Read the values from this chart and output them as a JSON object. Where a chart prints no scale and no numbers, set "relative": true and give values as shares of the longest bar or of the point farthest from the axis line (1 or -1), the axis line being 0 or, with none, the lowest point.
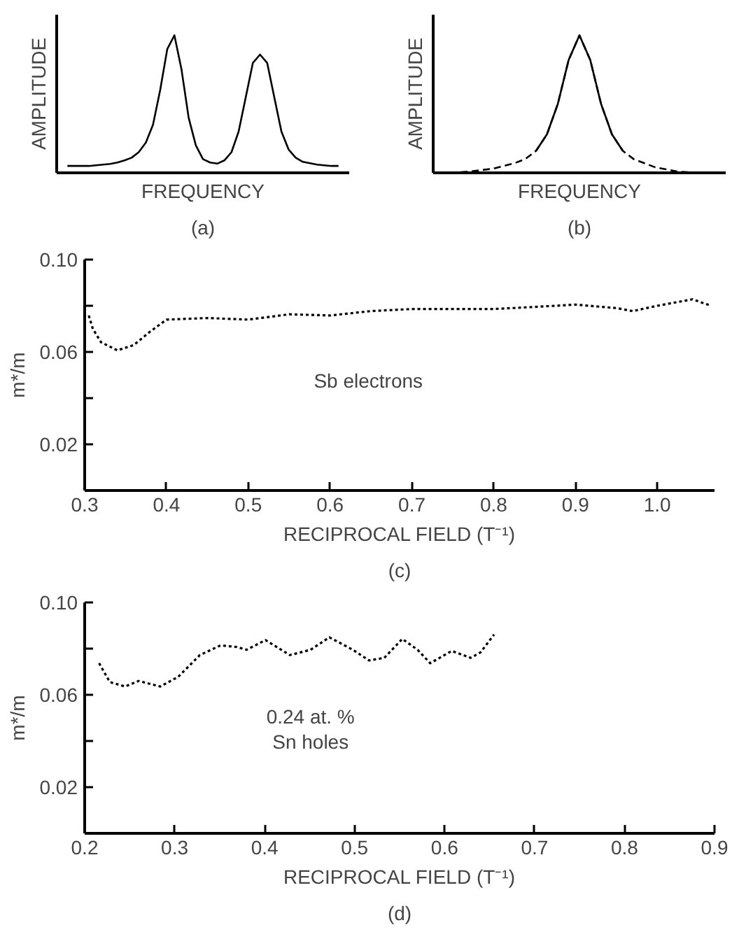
{
  "chart_data": [
    {
      "type": "line",
      "relative": true,
      "xlabel": "FREQUENCY",
      "ylabel": "AMPLITUDE",
      "annotations": [
        "(a)"
      ],
      "line_style": "solid",
      "categories": [
        null,
        null,
        null,
        null,
        null,
        null,
        null,
        null,
        null,
        null,
        null,
        null,
        null,
        null,
        null,
        null,
        null,
        null,
        null,
        null,
        null,
        null,
        null,
        null,
        null,
        null,
        null,
        null,
        null,
        null,
        null,
        null,
        null,
        null,
        null,
        null,
        null,
        null,
        null
      ],
      "series": [
        {
          "color": "#000000",
          "values": [
            0.05,
            0.05,
            0.05,
            0.05,
            0.055,
            0.06,
            0.065,
            0.075,
            0.09,
            0.11,
            0.15,
            0.22,
            0.35,
            0.6,
            0.9,
            1.0,
            0.75,
            0.4,
            0.2,
            0.1,
            0.075,
            0.067,
            0.09,
            0.15,
            0.3,
            0.55,
            0.8,
            0.86,
            0.8,
            0.55,
            0.3,
            0.17,
            0.11,
            0.08,
            0.07,
            0.06,
            0.055,
            0.05,
            0.05
          ]
        }
      ]
    },
    {
      "type": "line",
      "relative": true,
      "xlabel": "FREQUENCY",
      "ylabel": "AMPLITUDE",
      "annotations": [
        "(b)"
      ],
      "categories": [
        null,
        null,
        null,
        null,
        null,
        null,
        null,
        null,
        null,
        null,
        null,
        null,
        null,
        null,
        null,
        null,
        null,
        null,
        null,
        null,
        null,
        null,
        null,
        null,
        null
      ],
      "series": [
        {
          "color": "#000000",
          "line_style": "dashed",
          "values": [
            0.0,
            0.005,
            0.01,
            0.02,
            0.03,
            0.05,
            0.07,
            0.1,
            0.16,
            0.28,
            0.5,
            0.82,
            1.0,
            0.82,
            0.5,
            0.28,
            0.16,
            0.1,
            0.07,
            0.04,
            0.025,
            0.01,
            0.005,
            0.0,
            0.0
          ]
        },
        {
          "color": "#000000",
          "line_style": "solid",
          "values": [
            null,
            null,
            null,
            null,
            null,
            null,
            null,
            null,
            0.16,
            0.28,
            0.5,
            0.82,
            1.0,
            0.82,
            0.5,
            0.28,
            0.16,
            null,
            null,
            null,
            null,
            null,
            null,
            null,
            null
          ]
        }
      ]
    },
    {
      "type": "line",
      "xlabel": "RECIPROCAL FIELD (T⁻¹)",
      "ylabel": "m*/m",
      "annotations": [
        "(c)"
      ],
      "line_style": "dotted",
      "xlim": [
        0.3,
        1.07
      ],
      "ylim": [
        0,
        0.1
      ],
      "xticks": [
        0.3,
        0.4,
        0.5,
        0.6,
        0.7,
        0.8,
        0.9,
        {
          "value": 1.0,
          "label": "1.0"
        }
      ],
      "yticks": [
        {
          "value": 0.02,
          "label": "0.02"
        },
        {
          "value": 0.04,
          "label": null
        },
        {
          "value": 0.06,
          "label": "0.06"
        },
        {
          "value": 0.08,
          "label": null
        },
        {
          "value": 0.1,
          "label": "0.10"
        }
      ],
      "series": [
        {
          "name": "Sb  electrons",
          "color": "#000000",
          "x": [
            0.305,
            0.31,
            0.32,
            0.34,
            0.36,
            0.38,
            0.4,
            0.45,
            0.5,
            0.55,
            0.6,
            0.65,
            0.7,
            0.75,
            0.8,
            0.85,
            0.9,
            0.95,
            0.97,
            1.0,
            1.043,
            1.066
          ],
          "values": [
            0.0758,
            0.07,
            0.0642,
            0.0607,
            0.063,
            0.0688,
            0.074,
            0.0747,
            0.074,
            0.0763,
            0.0758,
            0.0777,
            0.0786,
            0.0786,
            0.0786,
            0.0795,
            0.0805,
            0.079,
            0.0777,
            0.08,
            0.0828,
            0.08
          ]
        }
      ]
    },
    {
      "type": "line",
      "xlabel": "RECIPROCAL FIELD (T⁻¹)",
      "ylabel": "m*/m",
      "annotations": [
        "(d)"
      ],
      "line_style": "dotted",
      "xlim": [
        0.2,
        0.9
      ],
      "ylim": [
        0,
        0.1
      ],
      "xticks": [
        0.2,
        0.3,
        0.4,
        0.5,
        0.6,
        0.7,
        0.8,
        0.9
      ],
      "yticks": [
        {
          "value": 0.02,
          "label": "0.02"
        },
        {
          "value": 0.04,
          "label": null
        },
        {
          "value": 0.06,
          "label": "0.06"
        },
        {
          "value": 0.08,
          "label": null
        },
        {
          "value": 0.1,
          "label": "0.10"
        }
      ],
      "series": [
        {
          "name": "0.24 at. %\nSn holes",
          "color": "#000000",
          "x": [
            0.216,
            0.228,
            0.245,
            0.26,
            0.284,
            0.304,
            0.328,
            0.351,
            0.369,
            0.38,
            0.401,
            0.428,
            0.451,
            0.472,
            0.498,
            0.516,
            0.533,
            0.553,
            0.57,
            0.584,
            0.608,
            0.629,
            0.64,
            0.655
          ],
          "values": [
            0.0737,
            0.0655,
            0.0636,
            0.066,
            0.0636,
            0.0678,
            0.0772,
            0.0814,
            0.0807,
            0.0795,
            0.0837,
            0.0772,
            0.0795,
            0.0849,
            0.0795,
            0.0749,
            0.076,
            0.0842,
            0.0795,
            0.0737,
            0.079,
            0.076,
            0.0784,
            0.0861
          ]
        }
      ]
    }
  ]
}
